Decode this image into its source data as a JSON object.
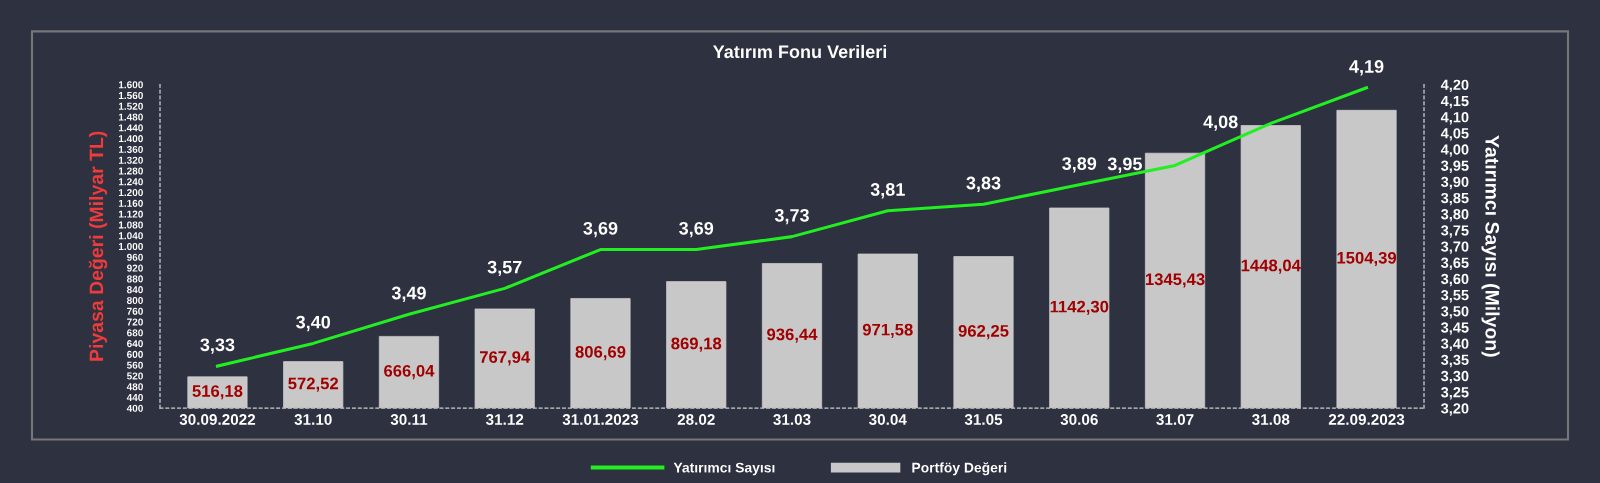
{
  "chart_data": {
    "type": "bar",
    "title": "Yatırım Fonu Verileri",
    "ylabel": "Piyasa Değeri (Milyar TL)",
    "y2label": "Yatırımcı Sayısı (Milyon)",
    "categories": [
      "30.09.2022",
      "31.10",
      "30.11",
      "31.12",
      "31.01.2023",
      "28.02",
      "31.03",
      "30.04",
      "31.05",
      "30.06",
      "31.07",
      "31.08",
      "22.09.2023"
    ],
    "series": [
      {
        "name": "Portföy Değeri",
        "color": "#c8c8c8",
        "values": [
          516.18,
          572.52,
          666.04,
          767.94,
          806.69,
          869.18,
          936.44,
          971.58,
          962.25,
          1142.3,
          1345.43,
          1448.04,
          1504.39
        ],
        "value_labels": [
          "516,18",
          "572,52",
          "666,04",
          "767,94",
          "806,69",
          "869,18",
          "936,44",
          "971,58",
          "962,25",
          "1142,30",
          "1345,43",
          "1448,04",
          "1504,39"
        ]
      },
      {
        "name": "Yatırımcı Sayısı",
        "type": "line",
        "axis": "y2",
        "color": "#22ee22",
        "values": [
          3.33,
          3.4,
          3.49,
          3.57,
          3.69,
          3.69,
          3.73,
          3.81,
          3.83,
          3.89,
          3.95,
          4.08,
          4.19
        ],
        "value_labels": [
          "3,33",
          "3,40",
          "3,49",
          "3,57",
          "3,69",
          "3,69",
          "3,73",
          "3,81",
          "3,83",
          "3,89",
          "3,95",
          "4,08",
          "4,19"
        ]
      }
    ],
    "ylim": [
      400,
      1600
    ],
    "yticks": [
      400,
      440,
      480,
      520,
      560,
      600,
      640,
      680,
      720,
      760,
      800,
      840,
      880,
      920,
      960,
      {
        "value": 1000,
        "label": "1.000"
      },
      {
        "value": 1040,
        "label": "1.040"
      },
      {
        "value": 1080,
        "label": "1.080"
      },
      {
        "value": 1120,
        "label": "1.120"
      },
      {
        "value": 1160,
        "label": "1.160"
      },
      {
        "value": 1200,
        "label": "1.200"
      },
      {
        "value": 1240,
        "label": "1.240"
      },
      {
        "value": 1280,
        "label": "1.280"
      },
      {
        "value": 1320,
        "label": "1.320"
      },
      {
        "value": 1360,
        "label": "1.360"
      },
      {
        "value": 1400,
        "label": "1.400"
      },
      {
        "value": 1440,
        "label": "1.440"
      },
      {
        "value": 1480,
        "label": "1.480"
      },
      {
        "value": 1520,
        "label": "1.520"
      },
      {
        "value": 1560,
        "label": "1.560"
      },
      {
        "value": 1600,
        "label": "1.600"
      }
    ],
    "y2lim": [
      3.2,
      4.2
    ],
    "y2ticks": [
      {
        "value": 3.2,
        "label": "3,20"
      },
      {
        "value": 3.25,
        "label": "3,25"
      },
      {
        "value": 3.3,
        "label": "3,30"
      },
      {
        "value": 3.35,
        "label": "3,35"
      },
      {
        "value": 3.4,
        "label": "3,40"
      },
      {
        "value": 3.45,
        "label": "3,45"
      },
      {
        "value": 3.5,
        "label": "3,50"
      },
      {
        "value": 3.55,
        "label": "3,55"
      },
      {
        "value": 3.6,
        "label": "3,60"
      },
      {
        "value": 3.65,
        "label": "3,65"
      },
      {
        "value": 3.7,
        "label": "3,70"
      },
      {
        "value": 3.75,
        "label": "3,75"
      },
      {
        "value": 3.8,
        "label": "3,80"
      },
      {
        "value": 3.85,
        "label": "3,85"
      },
      {
        "value": 3.9,
        "label": "3,90"
      },
      {
        "value": 3.95,
        "label": "3,95"
      },
      {
        "value": 4.0,
        "label": "4,00"
      },
      {
        "value": 4.05,
        "label": "4,05"
      },
      {
        "value": 4.1,
        "label": "4,10"
      },
      {
        "value": 4.15,
        "label": "4,15"
      },
      {
        "value": 4.2,
        "label": "4,20"
      }
    ],
    "legend": "bottom",
    "grid": false,
    "marker": "none"
  }
}
